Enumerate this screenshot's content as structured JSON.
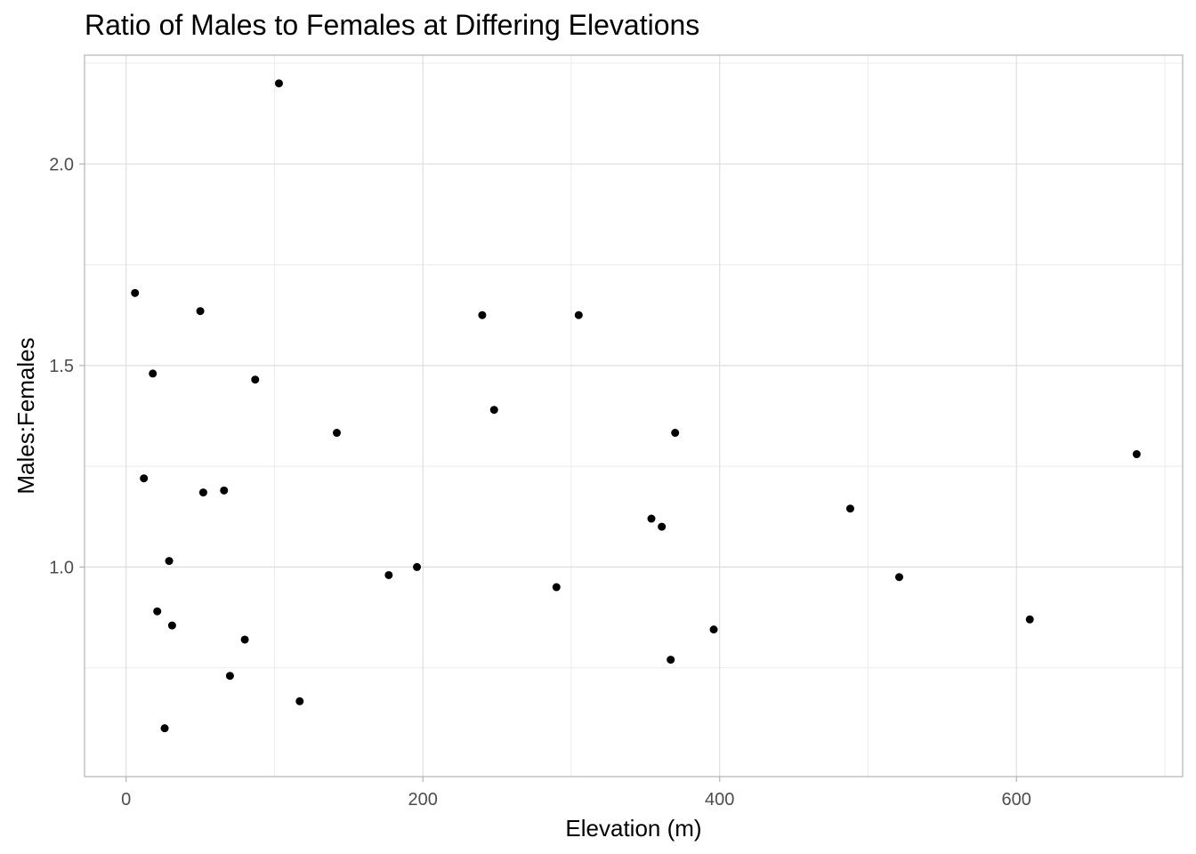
{
  "chart_data": {
    "type": "scatter",
    "title": "Ratio of Males to Females at Differing Elevations",
    "xlabel": "Elevation (m)",
    "ylabel": "Males:Females",
    "xlim": [
      -28,
      712
    ],
    "ylim": [
      0.48,
      2.27
    ],
    "x_ticks": [
      0,
      200,
      400,
      600
    ],
    "x_tick_labels": [
      "0",
      "200",
      "400",
      "600"
    ],
    "y_ticks": [
      1.0,
      1.5,
      2.0
    ],
    "y_tick_labels": [
      "1.0",
      "1.5",
      "2.0"
    ],
    "grid": true,
    "legend": "none",
    "point_color": "#000000",
    "points": [
      {
        "x": 6,
        "y": 1.68
      },
      {
        "x": 12,
        "y": 1.22
      },
      {
        "x": 18,
        "y": 1.48
      },
      {
        "x": 21,
        "y": 0.89
      },
      {
        "x": 26,
        "y": 0.6
      },
      {
        "x": 29,
        "y": 1.015
      },
      {
        "x": 31,
        "y": 0.855
      },
      {
        "x": 50,
        "y": 1.635
      },
      {
        "x": 52,
        "y": 1.185
      },
      {
        "x": 66,
        "y": 1.19
      },
      {
        "x": 70,
        "y": 0.73
      },
      {
        "x": 80,
        "y": 0.82
      },
      {
        "x": 87,
        "y": 1.465
      },
      {
        "x": 103,
        "y": 2.2
      },
      {
        "x": 117,
        "y": 0.667
      },
      {
        "x": 142,
        "y": 1.333
      },
      {
        "x": 177,
        "y": 0.98
      },
      {
        "x": 196,
        "y": 1.0
      },
      {
        "x": 240,
        "y": 1.625
      },
      {
        "x": 248,
        "y": 1.39
      },
      {
        "x": 290,
        "y": 0.95
      },
      {
        "x": 305,
        "y": 1.625
      },
      {
        "x": 354,
        "y": 1.12
      },
      {
        "x": 361,
        "y": 1.1
      },
      {
        "x": 367,
        "y": 0.77
      },
      {
        "x": 370,
        "y": 1.333
      },
      {
        "x": 396,
        "y": 0.845
      },
      {
        "x": 488,
        "y": 1.145
      },
      {
        "x": 521,
        "y": 0.975
      },
      {
        "x": 609,
        "y": 0.87
      },
      {
        "x": 681,
        "y": 1.28
      }
    ]
  }
}
